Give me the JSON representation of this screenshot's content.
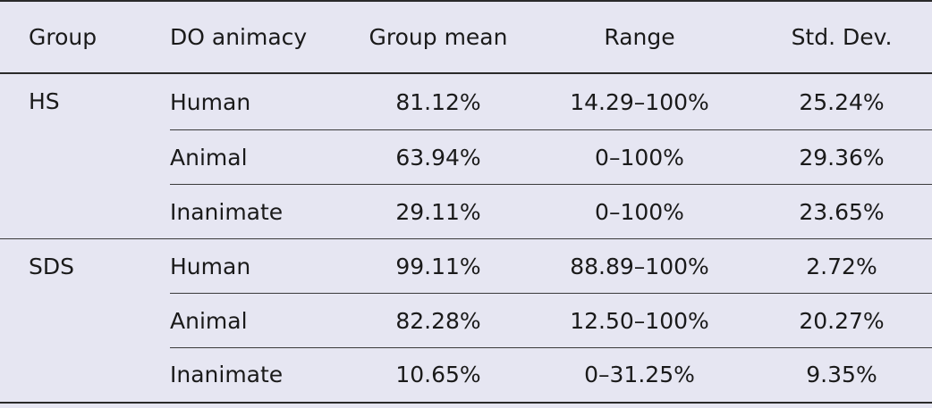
{
  "table": {
    "headers": [
      "Group",
      "DO animacy",
      "Group mean",
      "Range",
      "Std. Dev."
    ],
    "groups": [
      {
        "name": "HS",
        "rows": [
          {
            "animacy": "Human",
            "mean": "81.12%",
            "range": "14.29–100%",
            "sd": "25.24%"
          },
          {
            "animacy": "Animal",
            "mean": "63.94%",
            "range": "0–100%",
            "sd": "29.36%"
          },
          {
            "animacy": "Inanimate",
            "mean": "29.11%",
            "range": "0–100%",
            "sd": "23.65%"
          }
        ]
      },
      {
        "name": "SDS",
        "rows": [
          {
            "animacy": "Human",
            "mean": "99.11%",
            "range": "88.89–100%",
            "sd": "2.72%"
          },
          {
            "animacy": "Animal",
            "mean": "82.28%",
            "range": "12.50–100%",
            "sd": "20.27%"
          },
          {
            "animacy": "Inanimate",
            "mean": "10.65%",
            "range": "0–31.25%",
            "sd": "9.35%"
          }
        ]
      }
    ]
  }
}
